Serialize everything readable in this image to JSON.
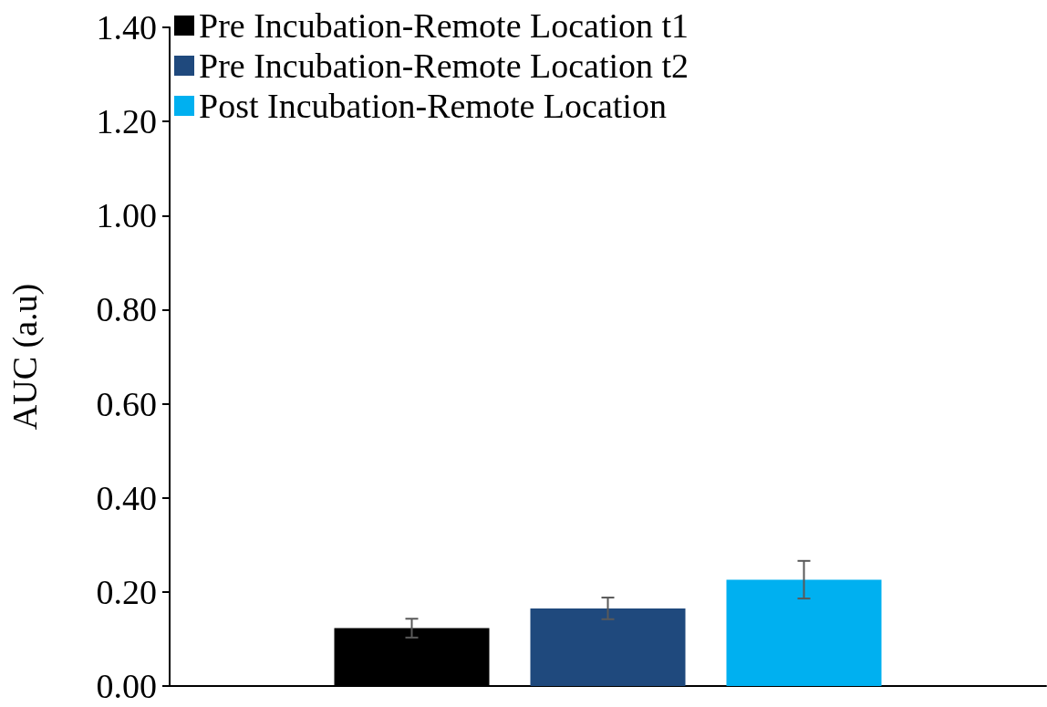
{
  "chart_data": {
    "type": "bar",
    "ylabel": "AUC (a.u)",
    "categories": [
      null
    ],
    "series": [
      {
        "name": "Pre Incubation-Remote Location t1",
        "color": "#000000",
        "values": [
          0.123
        ],
        "errors": [
          0.02
        ]
      },
      {
        "name": "Pre Incubation-Remote Location t2",
        "color": "#1f497d",
        "values": [
          0.165
        ],
        "errors": [
          0.023
        ]
      },
      {
        "name": "Post Incubation-Remote Location",
        "color": "#00b0f0",
        "values": [
          0.226
        ],
        "errors": [
          0.04
        ]
      }
    ],
    "ylim": [
      0,
      1.4
    ],
    "yticks": [
      {
        "value": 0,
        "label": "0.00"
      },
      {
        "value": 0.2,
        "label": "0.20"
      },
      {
        "value": 0.4,
        "label": "0.40"
      },
      {
        "value": 0.6,
        "label": "0.60"
      },
      {
        "value": 0.8,
        "label": "0.80"
      },
      {
        "value": 1.0,
        "label": "1.00"
      },
      {
        "value": 1.2,
        "label": "1.20"
      },
      {
        "value": 1.4,
        "label": "1.40"
      }
    ],
    "grid": false,
    "legend": "top left"
  }
}
